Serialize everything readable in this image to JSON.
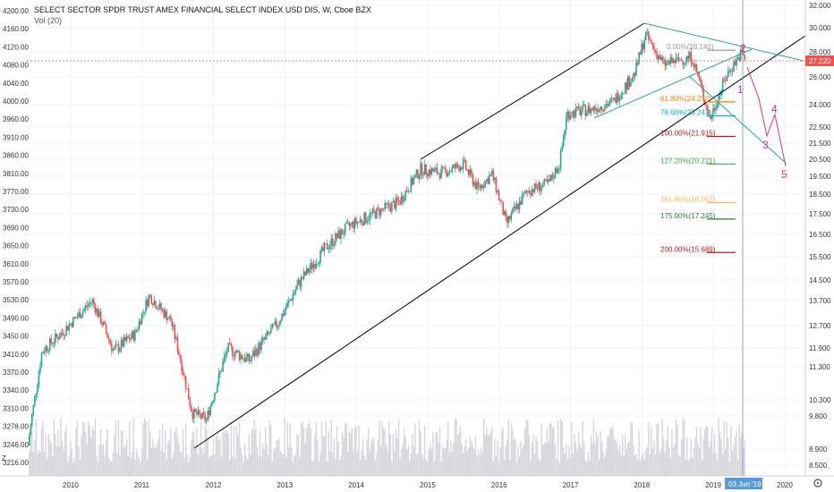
{
  "header": {
    "title": "SELECT SECTOR SPDR TRUST AMEX FINANCIAL SELECT INDEX USD DIS, W, Cboe BZX",
    "volume_label": "Vol (20)"
  },
  "left_scale_marker": "Z",
  "price_badge": "27.220",
  "date_badge": "03 Jun '19",
  "settings_icon": "gear-icon",
  "chart_data": {
    "type": "candlestick",
    "x_ticks": [
      "2010",
      "2011",
      "2012",
      "2013",
      "2014",
      "2015",
      "2016",
      "2017",
      "2018",
      "2019",
      "2020"
    ],
    "right_axis_ticks": [
      "32.000",
      "30.000",
      "28.000",
      "26.000",
      "24.000",
      "22.500",
      "21.500",
      "20.500",
      "19.500",
      "18.500",
      "17.500",
      "16.500",
      "15.500",
      "14.500",
      "13.700",
      "12.700",
      "11.900",
      "11.300",
      "10.300",
      "9.800",
      "8.900",
      "8.500"
    ],
    "left_axis_ticks": [
      "4200.00",
      "4160.00",
      "4120.00",
      "4080.00",
      "4040.00",
      "4000.00",
      "3960.00",
      "3910.00",
      "3860.00",
      "3810.00",
      "3770.00",
      "3730.00",
      "3690.00",
      "3650.00",
      "3610.00",
      "3570.00",
      "3530.00",
      "3490.00",
      "3450.00",
      "3410.00",
      "3370.00",
      "3340.00",
      "3310.00",
      "3278.00",
      "3246.00",
      "3216.00"
    ],
    "approx_close_path": [
      {
        "x": "2009.4",
        "y": 9.0
      },
      {
        "x": "2009.6",
        "y": 11.8
      },
      {
        "x": "2009.9",
        "y": 12.5
      },
      {
        "x": "2010.3",
        "y": 13.7
      },
      {
        "x": "2010.6",
        "y": 11.8
      },
      {
        "x": "2010.9",
        "y": 12.4
      },
      {
        "x": "2011.1",
        "y": 13.9
      },
      {
        "x": "2011.4",
        "y": 12.9
      },
      {
        "x": "2011.7",
        "y": 9.9
      },
      {
        "x": "2011.9",
        "y": 9.7
      },
      {
        "x": "2012.2",
        "y": 11.9
      },
      {
        "x": "2012.5",
        "y": 11.5
      },
      {
        "x": "2012.9",
        "y": 12.8
      },
      {
        "x": "2013.2",
        "y": 14.4
      },
      {
        "x": "2013.6",
        "y": 16.0
      },
      {
        "x": "2013.9",
        "y": 16.9
      },
      {
        "x": "2014.3",
        "y": 17.6
      },
      {
        "x": "2014.6",
        "y": 18.1
      },
      {
        "x": "2014.9",
        "y": 19.9
      },
      {
        "x": "2015.2",
        "y": 19.7
      },
      {
        "x": "2015.5",
        "y": 20.2
      },
      {
        "x": "2015.7",
        "y": 18.8
      },
      {
        "x": "2015.9",
        "y": 19.6
      },
      {
        "x": "2016.1",
        "y": 17.0
      },
      {
        "x": "2016.4",
        "y": 18.7
      },
      {
        "x": "2016.7",
        "y": 19.1
      },
      {
        "x": "2016.85",
        "y": 20.3
      },
      {
        "x": "2016.95",
        "y": 23.4
      },
      {
        "x": "2017.3",
        "y": 23.7
      },
      {
        "x": "2017.6",
        "y": 24.2
      },
      {
        "x": "2017.9",
        "y": 26.3
      },
      {
        "x": "2018.05",
        "y": 29.4
      },
      {
        "x": "2018.3",
        "y": 27.0
      },
      {
        "x": "2018.7",
        "y": 27.6
      },
      {
        "x": "2018.95",
        "y": 23.0
      },
      {
        "x": "2019.2",
        "y": 26.3
      },
      {
        "x": "2019.4",
        "y": 28.0
      },
      {
        "x": "2019.45",
        "y": 27.2
      }
    ],
    "fib_levels": [
      {
        "label": "0.00%(28.140)",
        "value": 28.14,
        "color": "#999999"
      },
      {
        "label": "61.80%(24.2??)",
        "value": 24.2,
        "color": "#f57c00"
      },
      {
        "label": "78.60%(23.247)",
        "value": 23.247,
        "color": "#00acc1"
      },
      {
        "label": "100.00%(21.915)",
        "value": 21.915,
        "color": "#b71c1c"
      },
      {
        "label": "127.20%(20.221)",
        "value": 20.221,
        "color": "#43a047"
      },
      {
        "label": "161.80%(18.067)",
        "value": 18.067,
        "color": "#ffb74d"
      },
      {
        "label": "175.00%(17.245)",
        "value": 17.245,
        "color": "#2e7d32"
      },
      {
        "label": "200.00%(15.689)",
        "value": 15.689,
        "color": "#b71c1c"
      }
    ],
    "wave_labels": [
      "2",
      "1",
      "3",
      "4",
      "5"
    ],
    "colors": {
      "up": "#26a69a",
      "down": "#ef5350",
      "channel": "#000000",
      "wedge": "#26a69a",
      "waves": "#d63384",
      "price_line": "#ef5350",
      "date_line": "#5b9bd5"
    },
    "grid": true
  }
}
